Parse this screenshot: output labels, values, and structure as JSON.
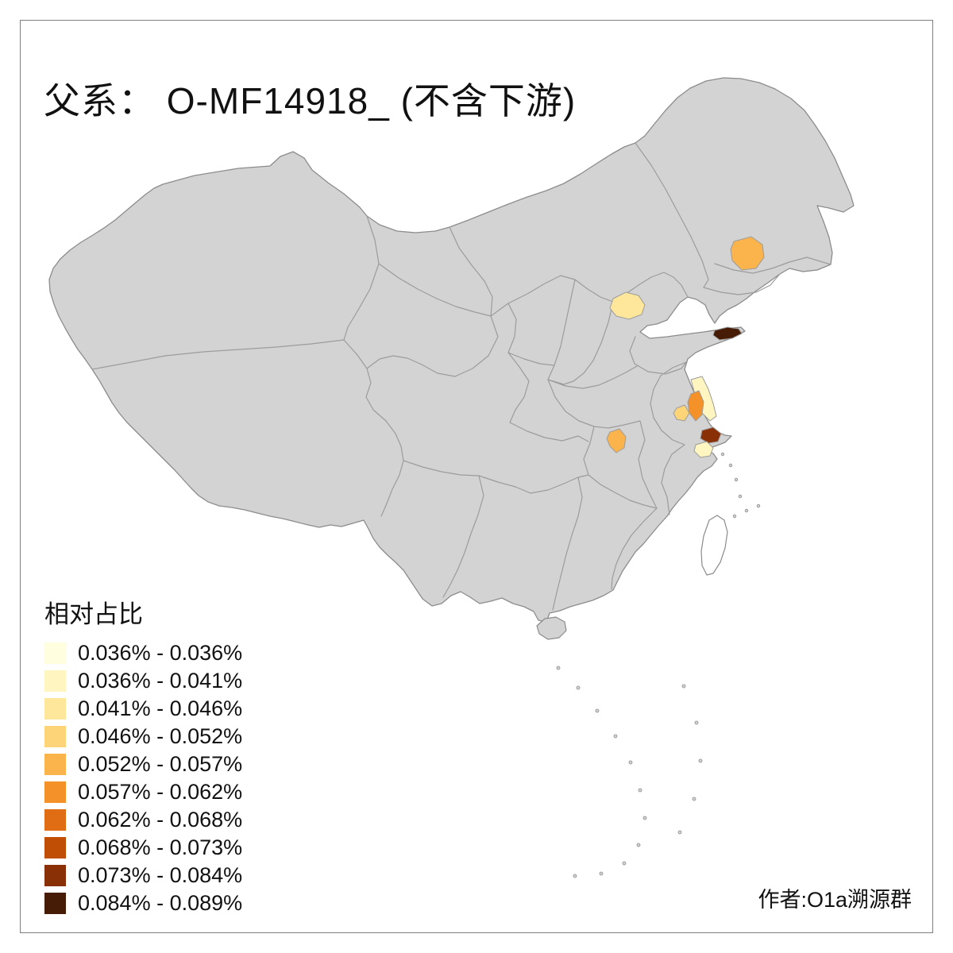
{
  "title": "父系： O-MF14918_ (不含下游)",
  "author": "作者:O1a溯源群",
  "legend": {
    "title": "相对占比",
    "items": [
      {
        "label": "0.036% - 0.036%",
        "color": "#FFFFE0"
      },
      {
        "label": "0.036% - 0.041%",
        "color": "#FFF5C0"
      },
      {
        "label": "0.041% - 0.046%",
        "color": "#FEE79B"
      },
      {
        "label": "0.046% - 0.052%",
        "color": "#FDD478"
      },
      {
        "label": "0.052% - 0.057%",
        "color": "#FBB34C"
      },
      {
        "label": "0.057% - 0.062%",
        "color": "#F59129"
      },
      {
        "label": "0.062% - 0.068%",
        "color": "#E06D13"
      },
      {
        "label": "0.068% - 0.073%",
        "color": "#C14E05"
      },
      {
        "label": "0.073% - 0.084%",
        "color": "#8A3006"
      },
      {
        "label": "0.084% - 0.089%",
        "color": "#471C07"
      }
    ]
  },
  "map": {
    "land_fill": "#d3d3d3",
    "island_fill": "#ffffff",
    "outline_color": "#8c8c8c",
    "border_color": "#9c9c9c",
    "regions": [
      {
        "id": "northeast-jilin-area",
        "bin": 4
      },
      {
        "id": "beijing-area",
        "bin": 2
      },
      {
        "id": "shandong-peninsula-tip",
        "bin": 9
      },
      {
        "id": "jiangsu-coastal-pale",
        "bin": 1
      },
      {
        "id": "jiangsu-central-orange",
        "bin": 5
      },
      {
        "id": "jiangsu-southwest-yellow",
        "bin": 3
      },
      {
        "id": "shanghai-adjacent-dark",
        "bin": 8
      },
      {
        "id": "hubei-east-orange",
        "bin": 4
      },
      {
        "id": "north-zhejiang-pale",
        "bin": 1
      }
    ]
  },
  "chart_data": {
    "type": "choropleth",
    "title": "父系： O-MF14918_ (不含下游)",
    "legend_title": "相对占比",
    "bins": [
      "0.036% - 0.036%",
      "0.036% - 0.041%",
      "0.041% - 0.046%",
      "0.046% - 0.052%",
      "0.052% - 0.057%",
      "0.057% - 0.062%",
      "0.062% - 0.068%",
      "0.068% - 0.073%",
      "0.073% - 0.084%",
      "0.084% - 0.089%"
    ],
    "highlighted_regions": [
      {
        "location": "northeast (Jilin area)",
        "range": "0.052% - 0.057%"
      },
      {
        "location": "Beijing area",
        "range": "0.041% - 0.046%"
      },
      {
        "location": "Shandong peninsula tip",
        "range": "0.084% - 0.089%"
      },
      {
        "location": "Jiangsu coastal",
        "range": "0.036% - 0.041%"
      },
      {
        "location": "Jiangsu central",
        "range": "0.057% - 0.062%"
      },
      {
        "location": "Jiangsu southwest",
        "range": "0.046% - 0.052%"
      },
      {
        "location": "Shanghai adjacent",
        "range": "0.073% - 0.084%"
      },
      {
        "location": "Hubei east",
        "range": "0.052% - 0.057%"
      },
      {
        "location": "north Zhejiang",
        "range": "0.036% - 0.041%"
      }
    ]
  }
}
